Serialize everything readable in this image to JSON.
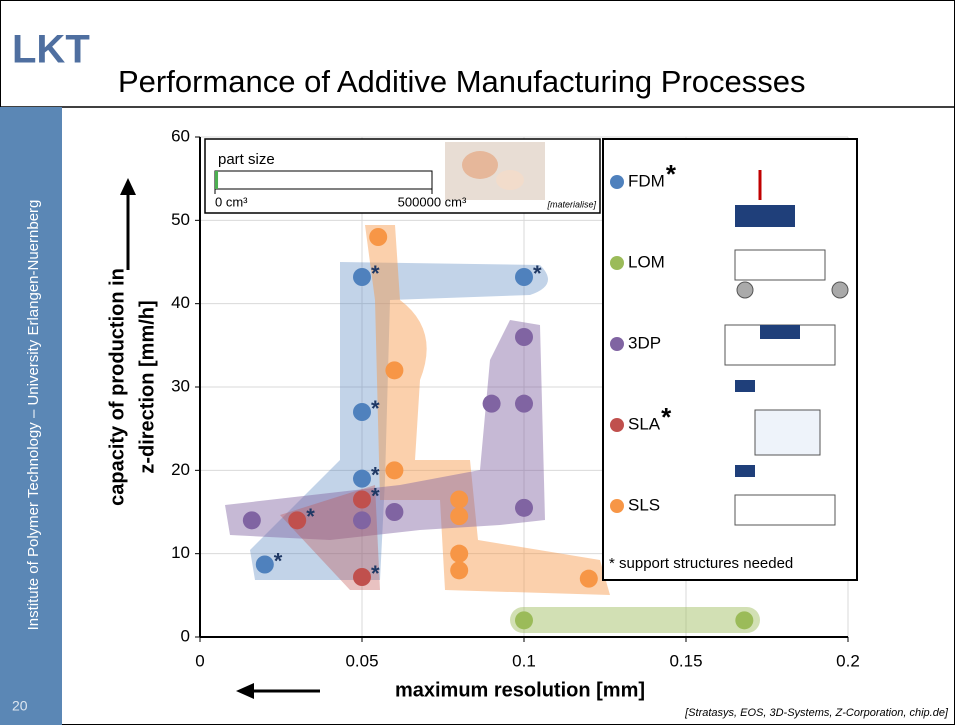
{
  "slide": {
    "title": "Performance of Additive Manufacturing Processes",
    "logo": "LKT",
    "sidebar": "Institute of Polymer Technology – University Erlangen-Nuernberg",
    "page_number": "20",
    "source": "[Stratasys, EOS, 3D-Systems, Z-Corporation, chip.de]"
  },
  "chart_data": {
    "type": "scatter",
    "xlabel": "maximum resolution [mm]",
    "ylabel": [
      "capacity of production in",
      "z-direction [mm/h]"
    ],
    "xlim": [
      0,
      0.2
    ],
    "xticks": [
      0,
      0.05,
      0.1,
      0.15,
      0.2
    ],
    "ylim": [
      0,
      60
    ],
    "yticks": [
      0,
      10,
      20,
      30,
      40,
      50,
      60
    ],
    "grid": true,
    "series": [
      {
        "name": "FDM",
        "color": "#4f81bd",
        "legend_note": "*",
        "x": [
          0.02,
          0.05,
          0.05,
          0.05,
          0.1
        ],
        "values": [
          8.7,
          43.2,
          27,
          19,
          43.2
        ],
        "point_notes": [
          "*",
          "*",
          "*",
          "*",
          "*"
        ]
      },
      {
        "name": "LOM",
        "color": "#9bbb59",
        "x": [
          0.1,
          0.168
        ],
        "values": [
          2,
          2
        ]
      },
      {
        "name": "3DP",
        "color": "#8064a2",
        "x": [
          0.016,
          0.05,
          0.06,
          0.09,
          0.1,
          0.1,
          0.1
        ],
        "values": [
          14,
          14,
          15,
          28,
          28,
          36,
          15.5
        ]
      },
      {
        "name": "SLA",
        "color": "#c0504d",
        "legend_note": "*",
        "x": [
          0.03,
          0.05,
          0.05
        ],
        "values": [
          14,
          16.5,
          7.2
        ],
        "point_notes": [
          "*",
          "*",
          "*"
        ]
      },
      {
        "name": "SLS",
        "color": "#f79646",
        "x": [
          0.055,
          0.06,
          0.06,
          0.08,
          0.08,
          0.08,
          0.08,
          0.12
        ],
        "values": [
          48,
          32,
          20,
          16.5,
          14.5,
          10,
          8,
          7
        ]
      }
    ],
    "footnote": "* support structures needed",
    "inset": {
      "label": "part size",
      "source": "[materialise]",
      "value": 7000,
      "color": "#4caf50",
      "xlim": [
        0,
        500000
      ],
      "xticks": [
        {
          "value": 0,
          "label": "0 cm³"
        },
        {
          "value": 500000,
          "label": "500000 cm³"
        }
      ]
    }
  }
}
